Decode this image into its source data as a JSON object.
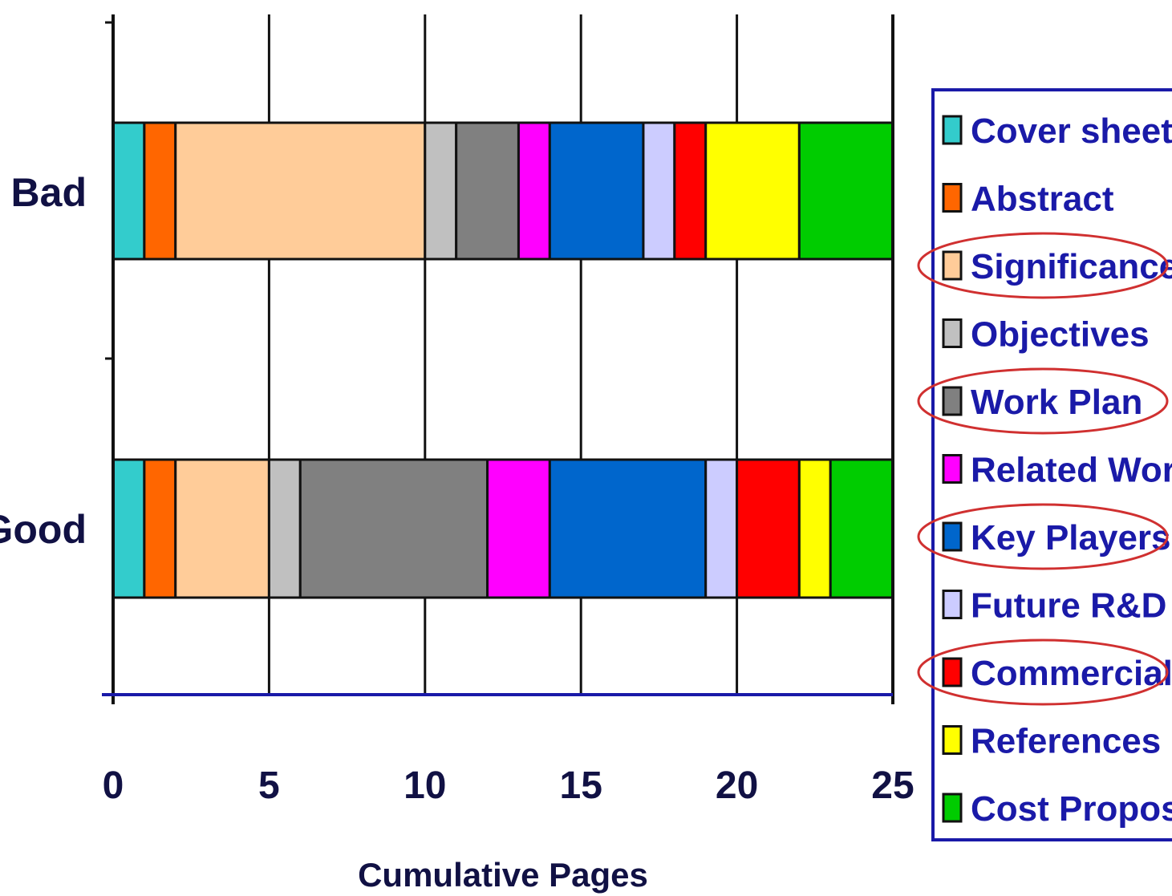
{
  "chart_data": {
    "type": "bar",
    "orientation": "horizontal",
    "stacked": true,
    "xlabel": "Cumulative Pages",
    "xlim": [
      0,
      25
    ],
    "xticks": [
      0,
      5,
      10,
      15,
      20,
      25
    ],
    "grid": true,
    "legend_position": "right",
    "categories": [
      "Bad",
      "Good"
    ],
    "series": [
      {
        "name": "Cover sheet",
        "color": "#33cccc",
        "values": [
          1,
          1
        ]
      },
      {
        "name": "Abstract",
        "color": "#ff6600",
        "values": [
          1,
          1
        ]
      },
      {
        "name": "Significance",
        "color": "#ffcc99",
        "values": [
          8,
          3
        ]
      },
      {
        "name": "Objectives",
        "color": "#c0c0c0",
        "values": [
          1,
          1
        ]
      },
      {
        "name": "Work Plan",
        "color": "#808080",
        "values": [
          2,
          6
        ]
      },
      {
        "name": "Related Work",
        "color": "#ff00ff",
        "values": [
          1,
          2
        ]
      },
      {
        "name": "Key Players",
        "color": "#0066cc",
        "values": [
          3,
          5
        ]
      },
      {
        "name": "Future R&D",
        "color": "#ccccff",
        "values": [
          1,
          1
        ]
      },
      {
        "name": "Commercial",
        "color": "#ff0000",
        "values": [
          1,
          2
        ]
      },
      {
        "name": "References",
        "color": "#ffff00",
        "values": [
          3,
          1
        ]
      },
      {
        "name": "Cost Proposal",
        "color": "#00cc00",
        "values": [
          3,
          2
        ]
      }
    ],
    "highlighted_legend_entries": [
      "Significance",
      "Work Plan",
      "Key Players",
      "Commercial"
    ],
    "highlight_color": "#d03030"
  }
}
